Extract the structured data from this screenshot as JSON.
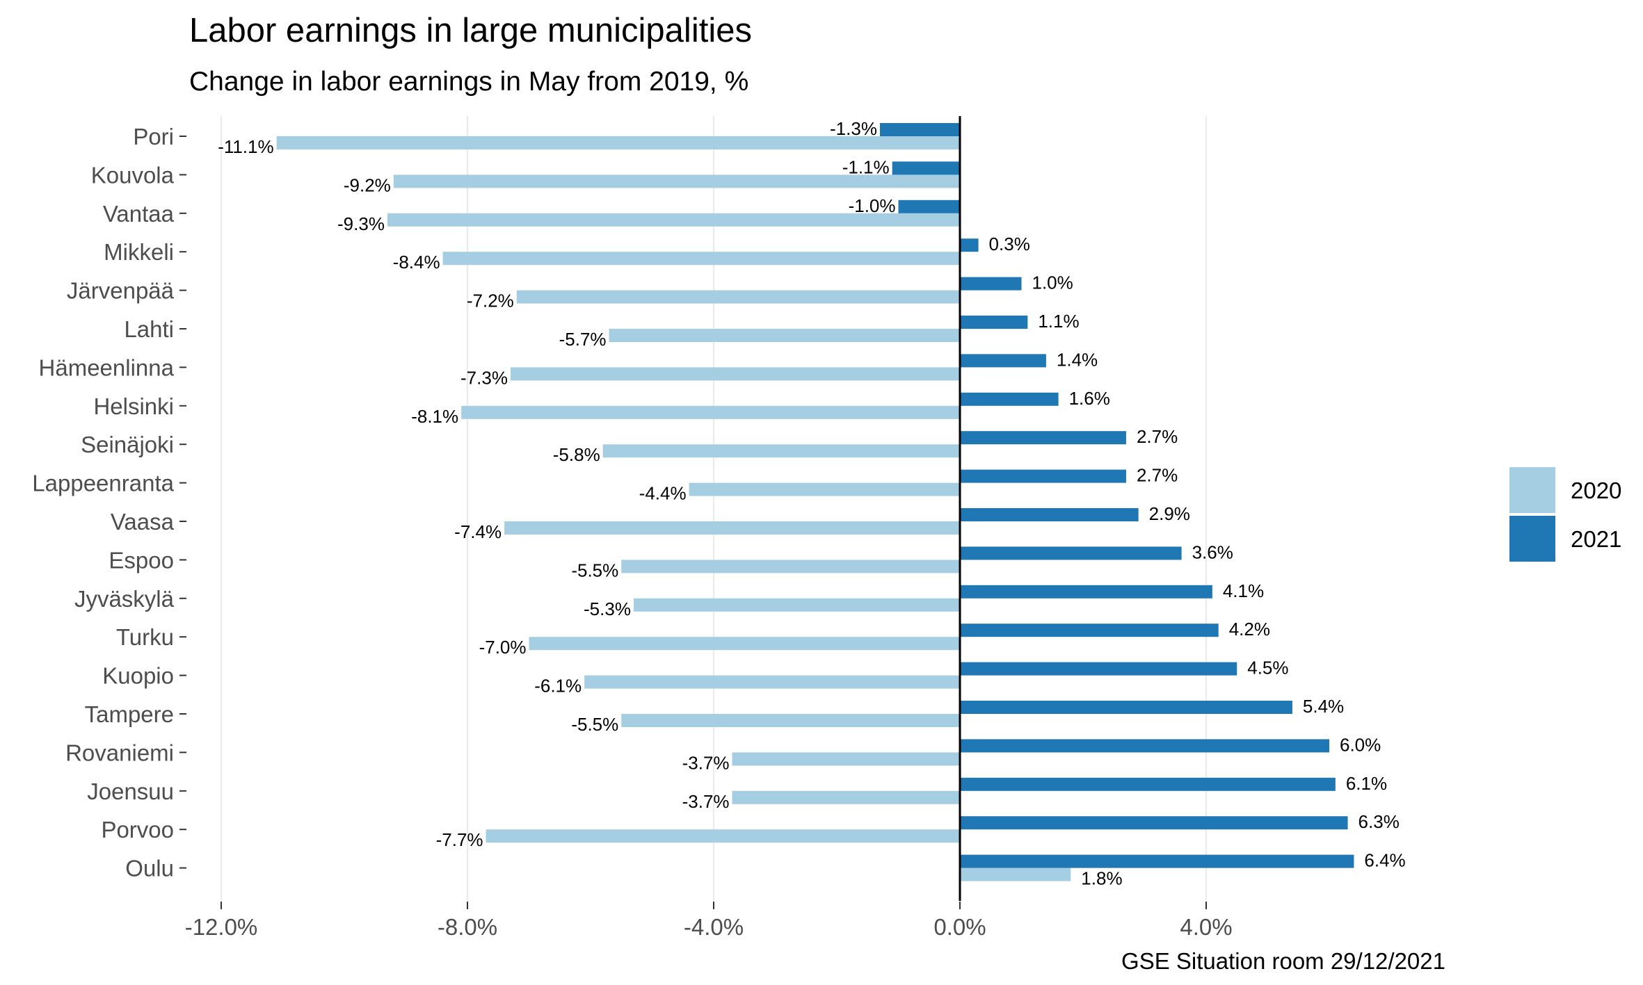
{
  "chart_data": {
    "type": "bar",
    "orientation": "horizontal",
    "title": "Labor earnings in large municipalities",
    "subtitle": "Change in labor earnings in May from 2019, %",
    "caption": "GSE Situation room 29/12/2021",
    "categories": [
      "Pori",
      "Kouvola",
      "Vantaa",
      "Mikkeli",
      "Järvenpää",
      "Lahti",
      "Hämeenlinna",
      "Helsinki",
      "Seinäjoki",
      "Lappeenranta",
      "Vaasa",
      "Espoo",
      "Jyväskylä",
      "Turku",
      "Kuopio",
      "Tampere",
      "Rovaniemi",
      "Joensuu",
      "Porvoo",
      "Oulu"
    ],
    "series": [
      {
        "name": "2020",
        "color": "#a6cee3",
        "values": [
          -11.1,
          -9.2,
          -9.3,
          -8.4,
          -7.2,
          -5.7,
          -7.3,
          -8.1,
          -5.8,
          -4.4,
          -7.4,
          -5.5,
          -5.3,
          -7.0,
          -6.1,
          -5.5,
          -3.7,
          -3.7,
          -7.7,
          1.8
        ],
        "labels": [
          "-11.1%",
          "-9.2%",
          "-9.3%",
          "-8.4%",
          "-7.2%",
          "-5.7%",
          "-7.3%",
          "-8.1%",
          "-5.8%",
          "-4.4%",
          "-7.4%",
          "-5.5%",
          "-5.3%",
          "-7.0%",
          "-6.1%",
          "-5.5%",
          "-3.7%",
          "-3.7%",
          "-7.7%",
          "1.8%"
        ]
      },
      {
        "name": "2021",
        "color": "#1f78b4",
        "values": [
          -1.3,
          -1.1,
          -1.0,
          0.3,
          1.0,
          1.1,
          1.4,
          1.6,
          2.7,
          2.7,
          2.9,
          3.6,
          4.1,
          4.2,
          4.5,
          5.4,
          6.0,
          6.1,
          6.3,
          6.4
        ],
        "labels": [
          "-1.3%",
          "-1.1%",
          "-1.0%",
          "0.3%",
          "1.0%",
          "1.1%",
          "1.4%",
          "1.6%",
          "2.7%",
          "2.7%",
          "2.9%",
          "3.6%",
          "4.1%",
          "4.2%",
          "4.5%",
          "5.4%",
          "6.0%",
          "6.1%",
          "6.3%",
          "6.4%"
        ]
      }
    ],
    "xticks": [
      -12,
      -8,
      -4,
      0,
      4
    ],
    "xtick_labels": [
      "-12.0%",
      "-8.0%",
      "-4.0%",
      "0.0%",
      "4.0%"
    ],
    "xlim": [
      -12.6,
      7.0
    ],
    "grid": true,
    "legend_position": "right"
  }
}
